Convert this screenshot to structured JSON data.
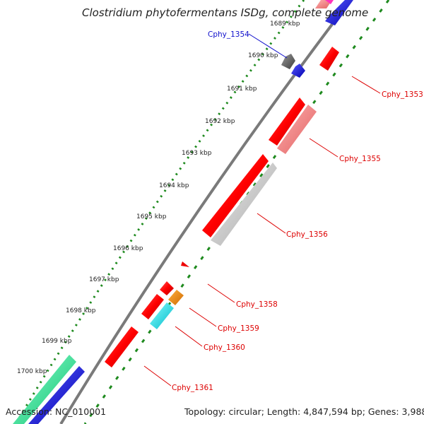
{
  "title": "Clostridium phytofermentans ISDg, complete genome",
  "footer": {
    "accession": "Accession: NC_010001",
    "summary": "Topology: circular; Length: 4,847,594 bp; Genes: 3,988"
  },
  "kbp_labels": [
    "1689 kbp",
    "1690 kbp",
    "1691 kbp",
    "1692 kbp",
    "1693 kbp",
    "1694 kbp",
    "1695 kbp",
    "1696 kbp",
    "1697 kbp",
    "1698 kbp",
    "1699 kbp",
    "1700 kbp"
  ],
  "genes": [
    {
      "name": "Cphy_1353",
      "color": "#ee0000"
    },
    {
      "name": "Cphy_1354",
      "color": "#1010cc"
    },
    {
      "name": "Cphy_1355",
      "color": "#ee0000"
    },
    {
      "name": "Cphy_1356",
      "color": "#ee0000"
    },
    {
      "name": "Cphy_1358",
      "color": "#ee0000"
    },
    {
      "name": "Cphy_1359",
      "color": "#ee0000"
    },
    {
      "name": "Cphy_1360",
      "color": "#ee0000"
    },
    {
      "name": "Cphy_1361",
      "color": "#ee0000"
    }
  ],
  "colors": {
    "cds_forward": "#ff0000",
    "cds_reverse_light": "#f08080",
    "cds_grey": "#c8c8c8",
    "backbone": "#808080",
    "tick_green": "#2a8a2a",
    "orange": "#ff8c00",
    "cyan": "#00e5e5",
    "mint": "#33ee99",
    "blue": "#1a1aff",
    "pink": "#ff66cc"
  }
}
